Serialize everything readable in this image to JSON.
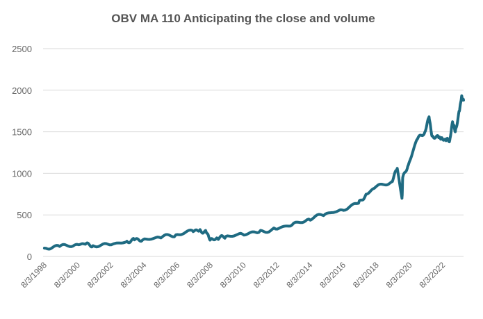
{
  "chart_data": {
    "type": "line",
    "title": "OBV MA 110 Anticipating the close and volume",
    "xlabel": "",
    "ylabel": "",
    "ylim": [
      0,
      2500
    ],
    "yticks": [
      0,
      500,
      1000,
      1500,
      2000,
      2500
    ],
    "xlim": [
      "8/3/1998",
      "11/30/2023"
    ],
    "xticks": [
      "8/3/1998",
      "8/3/2000",
      "8/3/2002",
      "8/3/2004",
      "8/3/2006",
      "8/3/2008",
      "8/3/2010",
      "8/3/2012",
      "8/3/2014",
      "8/3/2016",
      "8/3/2018",
      "8/3/2020",
      "8/3/2022"
    ],
    "grid": "horizontal",
    "legend": "none",
    "series_color": "#1f6b82",
    "grid_color": "#d9d9d9",
    "series": [
      {
        "x": [
          "9/1/1998",
          "8/3/1999",
          "8/3/2000",
          "2/1/2001",
          "8/3/2001",
          "8/3/2002",
          "8/3/2003",
          "2/1/2004",
          "8/3/2004",
          "8/3/2005",
          "8/3/2006",
          "8/3/2007",
          "1/2/2008",
          "6/2/2008",
          "9/1/2008",
          "2/2/2009",
          "8/3/2009",
          "8/3/2010",
          "8/3/2011",
          "8/3/2012",
          "8/3/2013",
          "8/3/2014",
          "8/3/2015",
          "8/3/2016",
          "8/3/2017",
          "2/1/2018",
          "8/3/2018",
          "8/3/2019",
          "12/2/2019",
          "3/16/2020",
          "4/1/2020",
          "8/3/2020",
          "2/1/2021",
          "8/3/2021",
          "11/1/2021",
          "1/3/2022",
          "6/1/2022",
          "8/3/2022",
          "11/1/2022",
          "2/1/2023",
          "4/3/2023",
          "6/1/2023",
          "9/1/2023",
          "10/16/2023",
          "11/30/2023"
        ],
        "y": [
          100,
          120,
          145,
          150,
          130,
          140,
          175,
          200,
          200,
          230,
          260,
          310,
          310,
          290,
          200,
          220,
          240,
          270,
          290,
          330,
          380,
          450,
          510,
          560,
          640,
          750,
          830,
          900,
          1060,
          700,
          950,
          1100,
          1400,
          1500,
          1680,
          1450,
          1430,
          1420,
          1400,
          1400,
          1620,
          1500,
          1750,
          1920,
          1880
        ]
      }
    ]
  }
}
